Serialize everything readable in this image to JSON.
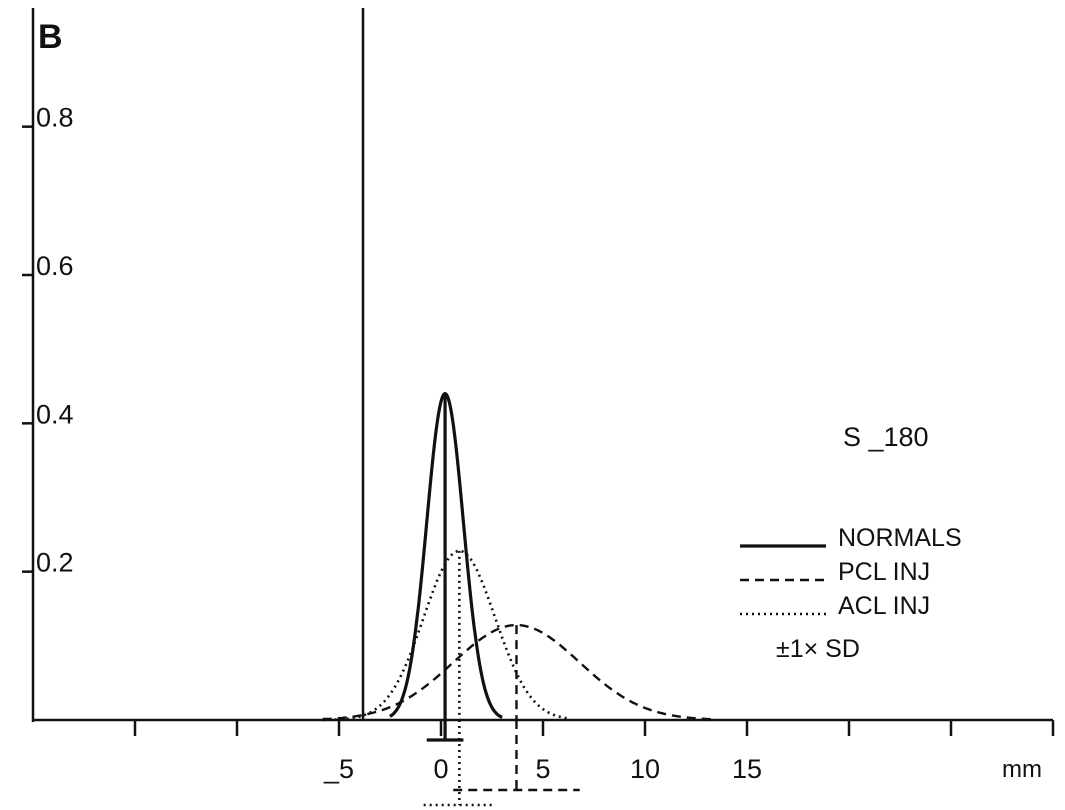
{
  "chart_data": {
    "type": "line",
    "panel_label": "B",
    "annotation": "S _180",
    "xlabel": "mm",
    "ylabel": "",
    "xlim": [
      -20,
      30
    ],
    "ylim": [
      0,
      0.96
    ],
    "x_ticks": [
      -15,
      -10,
      -5,
      0,
      5,
      10,
      15,
      20,
      25,
      30
    ],
    "x_tick_labels": [
      {
        "value": -5,
        "text": "_5"
      },
      {
        "value": 0,
        "text": "0"
      },
      {
        "value": 5,
        "text": "5"
      },
      {
        "value": 10,
        "text": "10"
      },
      {
        "value": 15,
        "text": "15"
      }
    ],
    "y_ticks": [
      0.2,
      0.4,
      0.6,
      0.8
    ],
    "y_tick_labels": [
      "0.2",
      "0.4",
      "0.6",
      "0.8"
    ],
    "grid": false,
    "legend_position": "right",
    "series": [
      {
        "name": "NORMALS",
        "style": "solid",
        "mean": 0.2,
        "sd": 0.9,
        "peak": 0.44,
        "range": [
          -2.5,
          3.0
        ]
      },
      {
        "name": "PCL INJ",
        "style": "dashed",
        "mean": 3.7,
        "sd": 3.1,
        "peak": 0.128,
        "range": [
          -5.8,
          13.5
        ]
      },
      {
        "name": "ACL INJ",
        "style": "dotted",
        "mean": 0.9,
        "sd": 1.75,
        "peak": 0.228,
        "range": [
          -5.8,
          6.3
        ]
      }
    ],
    "sd_legend_label": "±1× SD",
    "origin_rule": true
  },
  "colors": {
    "ink": "#111111",
    "background": "#ffffff"
  }
}
